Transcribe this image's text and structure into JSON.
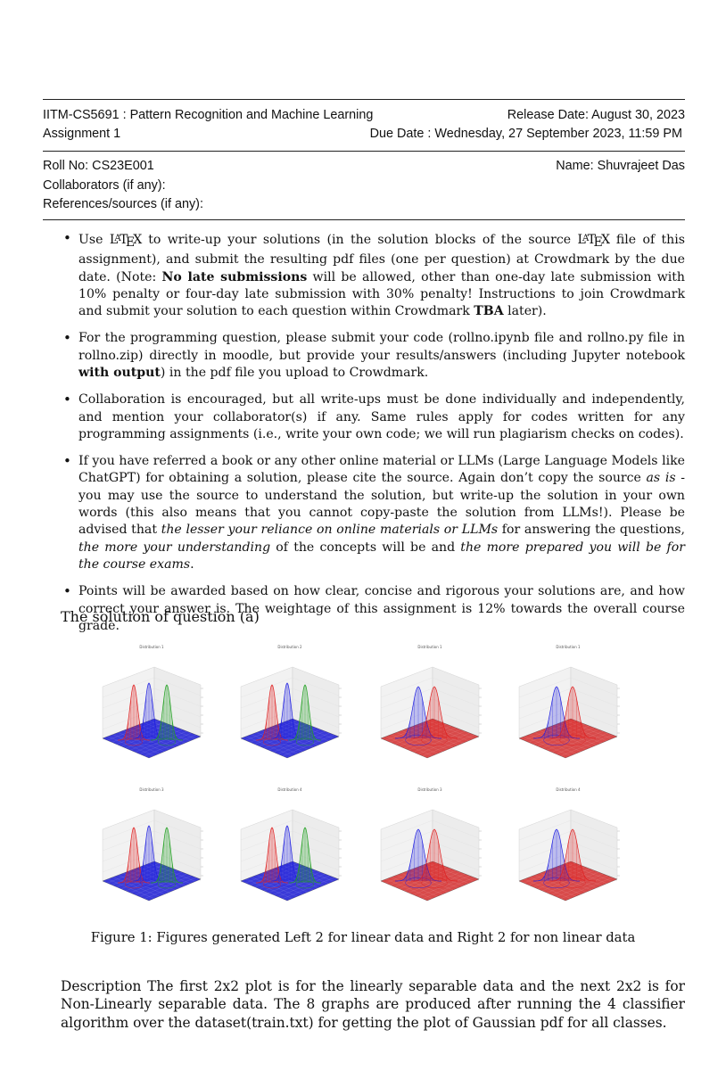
{
  "header": {
    "course": "IITM-CS5691 : Pattern Recognition and Machine Learning",
    "release": "Release Date: August 30, 2023",
    "assignment": "Assignment 1",
    "due": "Due Date : Wednesday, 27 September 2023, 11:59 PM"
  },
  "student": {
    "roll": "Roll No: CS23E001",
    "name": "Name: Shuvrajeet Das",
    "collaborators": "Collaborators (if any):",
    "references": "References/sources (if any):"
  },
  "bullets": {
    "b1": {
      "p1": "Use ",
      "p2": " to write-up your solutions (in the solution blocks of the source ",
      "p3": " file of this assignment), and submit the resulting pdf files (one per question) at Crowdmark by the due date. (Note: ",
      "bold1": "No late submissions",
      "p4": " will be allowed, other than one-day late submission with 10% penalty or four-day late submission with 30% penalty! Instructions to join Crowdmark and submit your solution to each question within Crowdmark ",
      "bold2": "TBA",
      "p5": " later)."
    },
    "b2": {
      "p1": "For the programming question, please submit your code (rollno.ipynb file and rollno.py file in rollno.zip) directly in moodle, but provide your results/answers (including Jupyter notebook ",
      "bold1": "with output",
      "p2": ") in the pdf file you upload to Crowdmark."
    },
    "b3": {
      "p1": "Collaboration is encouraged, but all write-ups must be done individually and independently, and mention your collaborator(s) if any. Same rules apply for codes written for any programming assignments (i.e., write your own code; we will run plagiarism checks on codes)."
    },
    "b4": {
      "p1": "If you have referred a book or any other online material or LLMs (Large Language Models like ChatGPT) for obtaining a solution, please cite the source. Again don’t copy the source ",
      "it1": "as is",
      "p2": " - you may use the source to understand the solution, but write-up the solution in your own words (this also means that you cannot copy-paste the solution from LLMs!). Please be advised that ",
      "it2": "the lesser your reliance on online materials or LLMs",
      "p3": " for answering the questions, ",
      "it3": "the more your understanding",
      "p4": " of the concepts will be and ",
      "it4": "the more prepared you will be for the course exams",
      "p5": "."
    },
    "b5": {
      "p1": "Points will be awarded based on how clear, concise and rigorous your solutions are, and how correct your answer is. The weightage of this assignment is 12% towards the overall course grade."
    }
  },
  "section_title": "The solution of question (a)",
  "figure": {
    "plots": [
      {
        "title": "Distribution 1",
        "floor": "#3a3ad8",
        "peaks": [
          "#e02020",
          "#2020e0",
          "#20a020"
        ]
      },
      {
        "title": "Distribution 2",
        "floor": "#3a3ad8",
        "peaks": [
          "#e02020",
          "#2020e0",
          "#20a020"
        ]
      },
      {
        "title": "Distribution 1",
        "floor": "#d84a4a",
        "peaks": [
          "#2020e0",
          "#e02020"
        ]
      },
      {
        "title": "Distribution 1",
        "floor": "#d84a4a",
        "peaks": [
          "#2020e0",
          "#e02020"
        ]
      },
      {
        "title": "Distribution 3",
        "floor": "#3a3ad8",
        "peaks": [
          "#e02020",
          "#2020e0",
          "#20a020"
        ]
      },
      {
        "title": "Distribution 4",
        "floor": "#3a3ad8",
        "peaks": [
          "#e02020",
          "#2020e0",
          "#20a020"
        ]
      },
      {
        "title": "Distribution 3",
        "floor": "#d84a4a",
        "peaks": [
          "#2020e0",
          "#e02020"
        ]
      },
      {
        "title": "Distribution 4",
        "floor": "#d84a4a",
        "peaks": [
          "#2020e0",
          "#e02020"
        ]
      }
    ],
    "caption": "Figure 1: Figures generated Left 2 for linear data and Right 2 for non linear data"
  },
  "description": "Description The first 2x2 plot is for the linearly separable data and the next 2x2 is for Non-Linearly separable data. The 8 graphs are produced after running the 4 classifier algorithm over the dataset(train.txt) for getting the plot of Gaussian pdf for all classes."
}
